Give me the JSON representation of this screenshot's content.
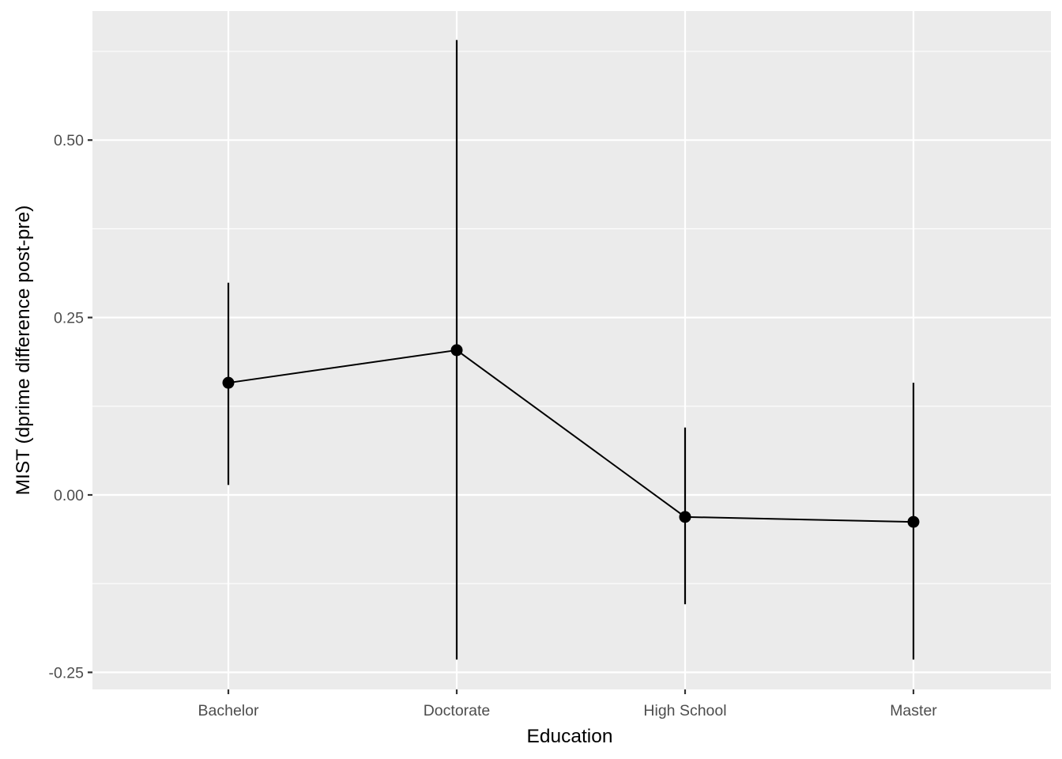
{
  "chart_data": {
    "type": "line",
    "categories": [
      "Bachelor",
      "Doctorate",
      "High School",
      "Master"
    ],
    "series": [
      {
        "values": [
          0.158,
          0.204,
          -0.031,
          -0.038
        ],
        "error_low": [
          0.014,
          -0.232,
          -0.154,
          -0.232
        ],
        "error_high": [
          0.299,
          0.641,
          0.095,
          0.158
        ]
      }
    ],
    "xlabel": "Education",
    "ylabel": "MIST (dprime difference post-pre)",
    "ylim": [
      -0.275,
      0.685
    ],
    "yticks": [
      -0.25,
      0.0,
      0.25,
      0.5
    ],
    "ytick_labels": [
      "-0.25",
      "0.00",
      "0.25",
      "0.50"
    ],
    "grid": true,
    "colors": {
      "panel": "#EBEBEB",
      "grid": "#FFFFFF",
      "series": "#000000",
      "tick_text": "#4D4D4D"
    }
  }
}
